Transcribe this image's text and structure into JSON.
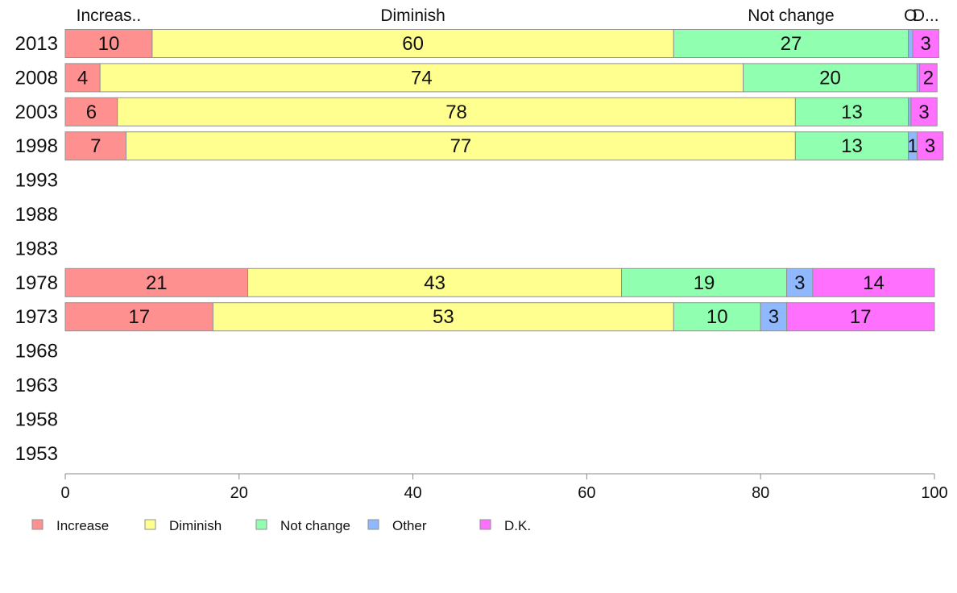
{
  "chart_data": {
    "type": "bar",
    "orientation": "horizontal",
    "stacked": true,
    "categories": [
      "2013",
      "2008",
      "2003",
      "1998",
      "1993",
      "1988",
      "1983",
      "1978",
      "1973",
      "1968",
      "1963",
      "1958",
      "1953"
    ],
    "series": [
      {
        "name": "Increase",
        "color": "#FF9090",
        "values": [
          10,
          4,
          6,
          7,
          null,
          null,
          null,
          21,
          17,
          null,
          null,
          null,
          null
        ]
      },
      {
        "name": "Diminish",
        "color": "#FFFF90",
        "values": [
          60,
          74,
          78,
          77,
          null,
          null,
          null,
          43,
          53,
          null,
          null,
          null,
          null
        ]
      },
      {
        "name": "Not change",
        "color": "#90FFB0",
        "values": [
          27,
          20,
          13,
          13,
          null,
          null,
          null,
          19,
          10,
          null,
          null,
          null,
          null
        ]
      },
      {
        "name": "Other",
        "color": "#90B8FF",
        "values": [
          0.5,
          0.3,
          0.3,
          1,
          null,
          null,
          null,
          3,
          3,
          null,
          null,
          null,
          null
        ]
      },
      {
        "name": "D.K.",
        "color": "#FF70FF",
        "values": [
          3,
          2,
          3,
          3,
          null,
          null,
          null,
          14,
          17,
          null,
          null,
          null,
          null
        ]
      }
    ],
    "segment_labels": [
      [
        "10",
        "60",
        "27",
        "",
        "3"
      ],
      [
        "4",
        "74",
        "20",
        "",
        "2"
      ],
      [
        "6",
        "78",
        "13",
        "",
        "3"
      ],
      [
        "7",
        "77",
        "13",
        "1",
        "3"
      ],
      null,
      null,
      null,
      [
        "21",
        "43",
        "19",
        "3",
        "14"
      ],
      [
        "17",
        "53",
        "10",
        "3",
        "17"
      ],
      null,
      null,
      null,
      null
    ],
    "top_labels": [
      "Increas..",
      "Diminish",
      "Not change",
      "O",
      "D..."
    ],
    "xlim": [
      0,
      100
    ],
    "xticks": [
      "0",
      "20",
      "40",
      "60",
      "80",
      "100"
    ],
    "legend": {
      "position": "bottom-left",
      "entries": [
        "Increase",
        "Diminish",
        "Not change",
        "Other",
        "D.K."
      ]
    },
    "grid": false
  }
}
